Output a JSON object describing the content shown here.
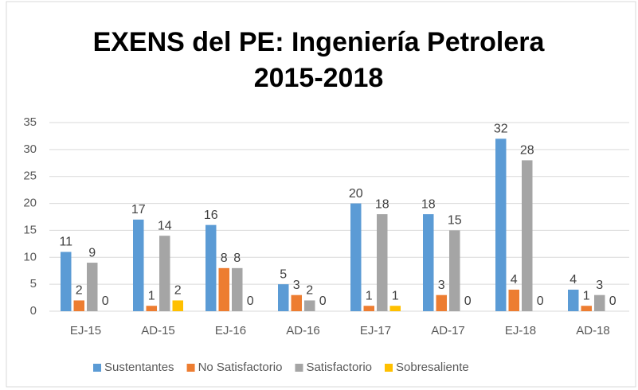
{
  "chart_data": {
    "type": "bar",
    "title": [
      "EXENS del PE: Ingeniería Petrolera",
      "2015-2018"
    ],
    "categories": [
      "EJ-15",
      "AD-15",
      "EJ-16",
      "AD-16",
      "EJ-17",
      "AD-17",
      "EJ-18",
      "AD-18"
    ],
    "series": [
      {
        "name": "Sustentantes",
        "color": "#5b9bd5",
        "values": [
          11,
          17,
          16,
          5,
          20,
          18,
          32,
          4
        ]
      },
      {
        "name": "No Satisfactorio",
        "color": "#ed7d31",
        "values": [
          2,
          1,
          8,
          3,
          1,
          3,
          4,
          1
        ]
      },
      {
        "name": "Satisfactorio",
        "color": "#a5a5a5",
        "values": [
          9,
          14,
          8,
          2,
          18,
          15,
          28,
          3
        ]
      },
      {
        "name": "Sobresaliente",
        "color": "#ffc000",
        "values": [
          0,
          2,
          0,
          0,
          1,
          0,
          0,
          0
        ]
      }
    ],
    "ylim": [
      0,
      35
    ],
    "yticks": [
      0,
      5,
      10,
      15,
      20,
      25,
      30,
      35
    ],
    "grid": true,
    "legend": "bottom"
  }
}
